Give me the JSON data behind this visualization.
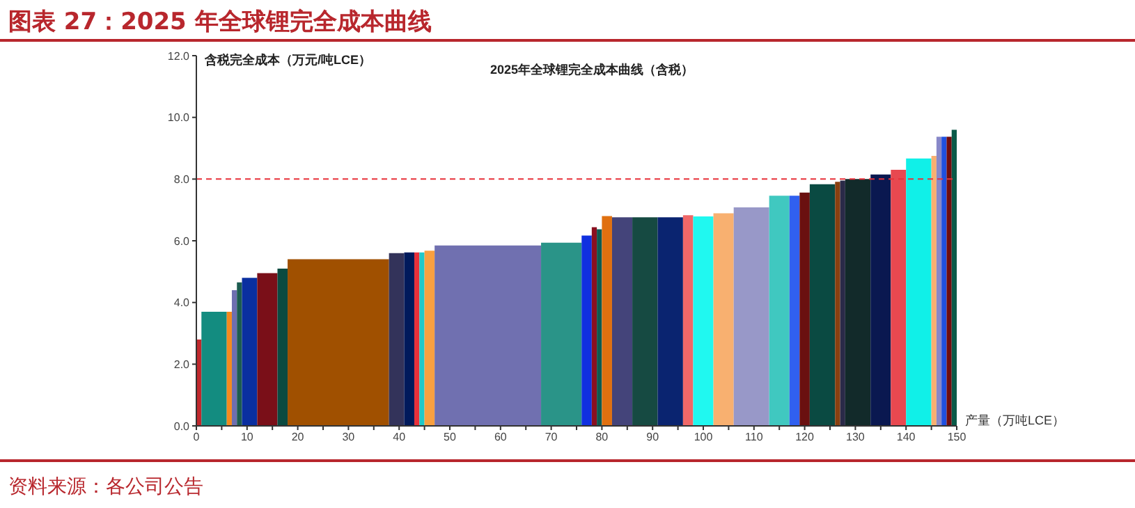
{
  "chart_data": {
    "type": "histogram",
    "title": "图表 27：2025 年全球锂完全成本曲线",
    "subtitle": "2025年全球锂完全成本曲线（含税）",
    "ylabel": "含税完全成本（万元/吨LCE）",
    "xlabel": "产量（万吨LCE）",
    "bins": [
      0,
      1,
      6,
      7,
      8,
      9,
      12,
      16,
      18,
      38,
      41,
      43,
      44,
      45,
      47,
      68,
      76,
      78,
      79,
      80,
      82,
      86,
      91,
      96,
      98,
      102,
      106,
      113,
      117,
      119,
      121,
      126,
      127,
      128,
      133,
      137,
      140,
      145,
      146,
      147,
      148,
      149,
      150
    ],
    "values": [
      2.8,
      3.7,
      3.7,
      4.4,
      4.65,
      4.8,
      4.95,
      5.1,
      5.4,
      5.6,
      5.62,
      5.62,
      5.62,
      5.68,
      5.85,
      5.94,
      6.17,
      6.44,
      6.37,
      6.8,
      6.76,
      6.76,
      6.76,
      6.83,
      6.79,
      6.89,
      7.08,
      7.46,
      7.46,
      7.56,
      7.83,
      7.91,
      7.95,
      8.0,
      8.15,
      8.3,
      8.67,
      8.75,
      9.37,
      9.37,
      9.37,
      9.6
    ],
    "colors": [
      "#c0282d",
      "#138c80",
      "#f28a1e",
      "#6e6eb0",
      "#1c5c50",
      "#0a2fa0",
      "#7a0f18",
      "#0b4a40",
      "#a05000",
      "#33335a",
      "#001a5c",
      "#e8303a",
      "#20c8c8",
      "#f8a040",
      "#7070b0",
      "#2a9488",
      "#1030e0",
      "#8a1020",
      "#0e5a50",
      "#e07010",
      "#44447a",
      "#164a42",
      "#0a2470",
      "#f06868",
      "#20f8f0",
      "#f8b070",
      "#9898c8",
      "#40c8c0",
      "#3060f0",
      "#6a1010",
      "#0a4a42",
      "#8a4010",
      "#2a2a48",
      "#122a2a",
      "#0a1850",
      "#e84850",
      "#10f0e8",
      "#f8b070",
      "#8888c8",
      "#2050e0",
      "#700c10",
      "#0a5a48"
    ],
    "xlim": [
      0,
      150
    ],
    "xticks": [
      0,
      {
        "value": 5,
        "label": null
      },
      10,
      {
        "value": 15,
        "label": null
      },
      20,
      {
        "value": 25,
        "label": null
      },
      30,
      {
        "value": 35,
        "label": null
      },
      40,
      {
        "value": 45,
        "label": null
      },
      50,
      {
        "value": 55,
        "label": null
      },
      60,
      {
        "value": 65,
        "label": null
      },
      70,
      {
        "value": 75,
        "label": null
      },
      80,
      {
        "value": 85,
        "label": null
      },
      90,
      {
        "value": 95,
        "label": null
      },
      100,
      {
        "value": 105,
        "label": null
      },
      110,
      {
        "value": 115,
        "label": null
      },
      120,
      {
        "value": 125,
        "label": null
      },
      130,
      {
        "value": 135,
        "label": null
      },
      140,
      {
        "value": 145,
        "label": null
      },
      150
    ],
    "ylim": [
      0,
      12
    ],
    "yticks": [
      {
        "value": 0,
        "label": "0.0"
      },
      {
        "value": 2,
        "label": "2.0"
      },
      {
        "value": 4,
        "label": "4.0"
      },
      {
        "value": 6,
        "label": "6.0"
      },
      {
        "value": 8,
        "label": "8.0"
      },
      {
        "value": 10,
        "label": "10.0"
      },
      {
        "value": 12,
        "label": "12.0"
      }
    ],
    "ref_lines": [
      {
        "axis": "y",
        "value": 8,
        "color": "#e8303a",
        "line_style": "dashed"
      }
    ],
    "grid": false,
    "annotations": [
      "资料来源：各公司公告"
    ]
  }
}
